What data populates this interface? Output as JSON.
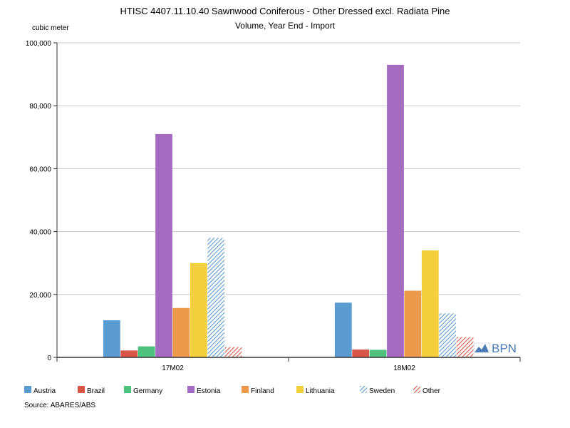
{
  "chart_data": {
    "type": "bar",
    "title": "HTISC 4407.11.10.40 Sawnwood Coniferous - Other Dressed excl. Radiata Pine",
    "subtitle": "Volume, Year End - Import",
    "ylabel": "cubic meter",
    "ylim": [
      0,
      100000
    ],
    "yticks": [
      "0",
      "20,000",
      "40,000",
      "60,000",
      "80,000",
      "100,000"
    ],
    "yticks_values": [
      0,
      20000,
      40000,
      60000,
      80000,
      100000
    ],
    "grid": true,
    "legend_position": "bottom",
    "categories": [
      "17M02",
      "18M02"
    ],
    "series": [
      {
        "name": "Austria",
        "values": [
          11800,
          17400
        ],
        "color": "#5b9bd0",
        "pattern": "solid"
      },
      {
        "name": "Brazil",
        "values": [
          2200,
          2500
        ],
        "color": "#d9574a",
        "pattern": "solid"
      },
      {
        "name": "Germany",
        "values": [
          3500,
          2400
        ],
        "color": "#4fc07d",
        "pattern": "solid"
      },
      {
        "name": "Estonia",
        "values": [
          71000,
          93000
        ],
        "color": "#a56bc0",
        "pattern": "solid"
      },
      {
        "name": "Finland",
        "values": [
          15700,
          21200
        ],
        "color": "#ee9a4d",
        "pattern": "solid"
      },
      {
        "name": "Lithuania",
        "values": [
          30000,
          34000
        ],
        "color": "#f4d03f",
        "pattern": "solid"
      },
      {
        "name": "Sweden",
        "values": [
          38000,
          14000
        ],
        "color": "#5b9bd0",
        "pattern": "hatch"
      },
      {
        "name": "Other",
        "values": [
          3300,
          6500
        ],
        "color": "#d9574a",
        "pattern": "hatch"
      }
    ]
  },
  "source": "Source: ABARES/ABS",
  "logo": {
    "text": "BPN",
    "color": "#4a79b4"
  }
}
